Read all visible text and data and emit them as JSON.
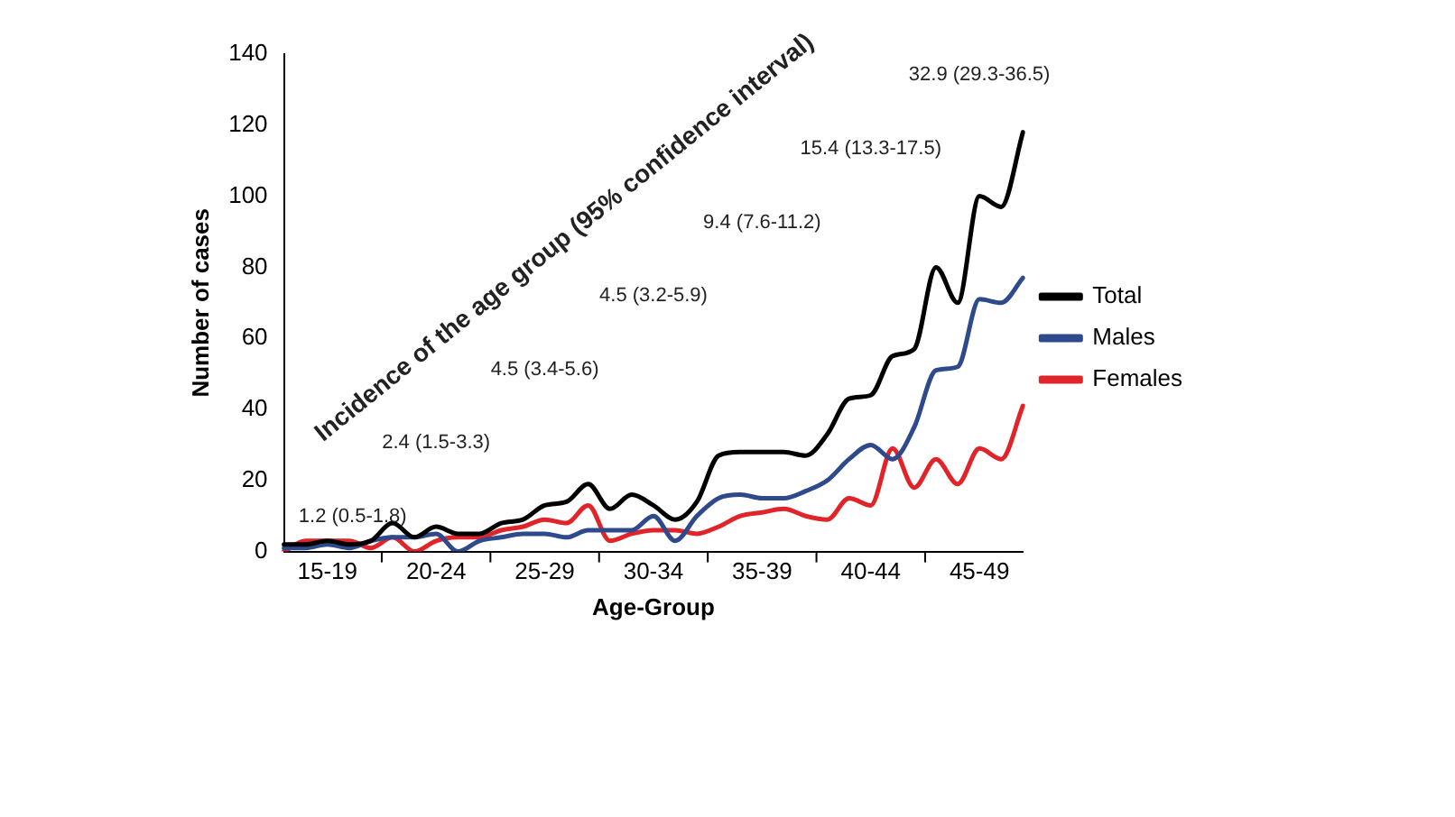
{
  "chart_data": {
    "type": "line",
    "xlabel": "Age-Group",
    "ylabel": "Number of cases",
    "categories": [
      null,
      null,
      "15-19",
      null,
      null,
      null,
      null,
      "20-24",
      null,
      null,
      null,
      null,
      "25-29",
      null,
      null,
      null,
      null,
      "30-34",
      null,
      null,
      null,
      null,
      "35-39",
      null,
      null,
      null,
      null,
      "40-44",
      null,
      null,
      null,
      null,
      "45-49",
      null,
      null
    ],
    "series": [
      {
        "name": "Total",
        "color": "#000000",
        "values": [
          2,
          2,
          3,
          2,
          3,
          8,
          4,
          7,
          5,
          5,
          8,
          9,
          13,
          14,
          19,
          12,
          16,
          13,
          9,
          14,
          27,
          28,
          28,
          28,
          27,
          33,
          43,
          44,
          55,
          57,
          80,
          70,
          100,
          97,
          118
        ]
      },
      {
        "name": "Males",
        "color": "#2e4a8c",
        "values": [
          1,
          1,
          2,
          1,
          3,
          4,
          4,
          5,
          0,
          3,
          4,
          5,
          5,
          4,
          6,
          6,
          6,
          10,
          3,
          10,
          15,
          16,
          15,
          15,
          17,
          20,
          26,
          30,
          26,
          35,
          51,
          52,
          71,
          70,
          77
        ]
      },
      {
        "name": "Females",
        "color": "#e0242a",
        "values": [
          0,
          3,
          3,
          3,
          1,
          4,
          0,
          3,
          4,
          4,
          6,
          7,
          9,
          8,
          13,
          3,
          5,
          6,
          6,
          5,
          7,
          10,
          11,
          12,
          10,
          9,
          15,
          13,
          29,
          18,
          26,
          19,
          29,
          26,
          41
        ]
      }
    ],
    "ylim": [
      0,
      140
    ],
    "yticks": [
      0,
      20,
      40,
      60,
      80,
      100,
      120,
      140
    ],
    "grid": false,
    "legend": "right",
    "marker": "none",
    "line_style": "solid",
    "annotations": [
      "Incidence of the age group (95% confidence interval)",
      "1.2 (0.5-1.8)",
      "2.4 (1.5-3.3)",
      "4.5 (3.4-5.6)",
      "4.5 (3.2-5.9)",
      "9.4 (7.6-11.2)",
      "15.4 (13.3-17.5)",
      "32.9 (29.3-36.5)"
    ]
  }
}
